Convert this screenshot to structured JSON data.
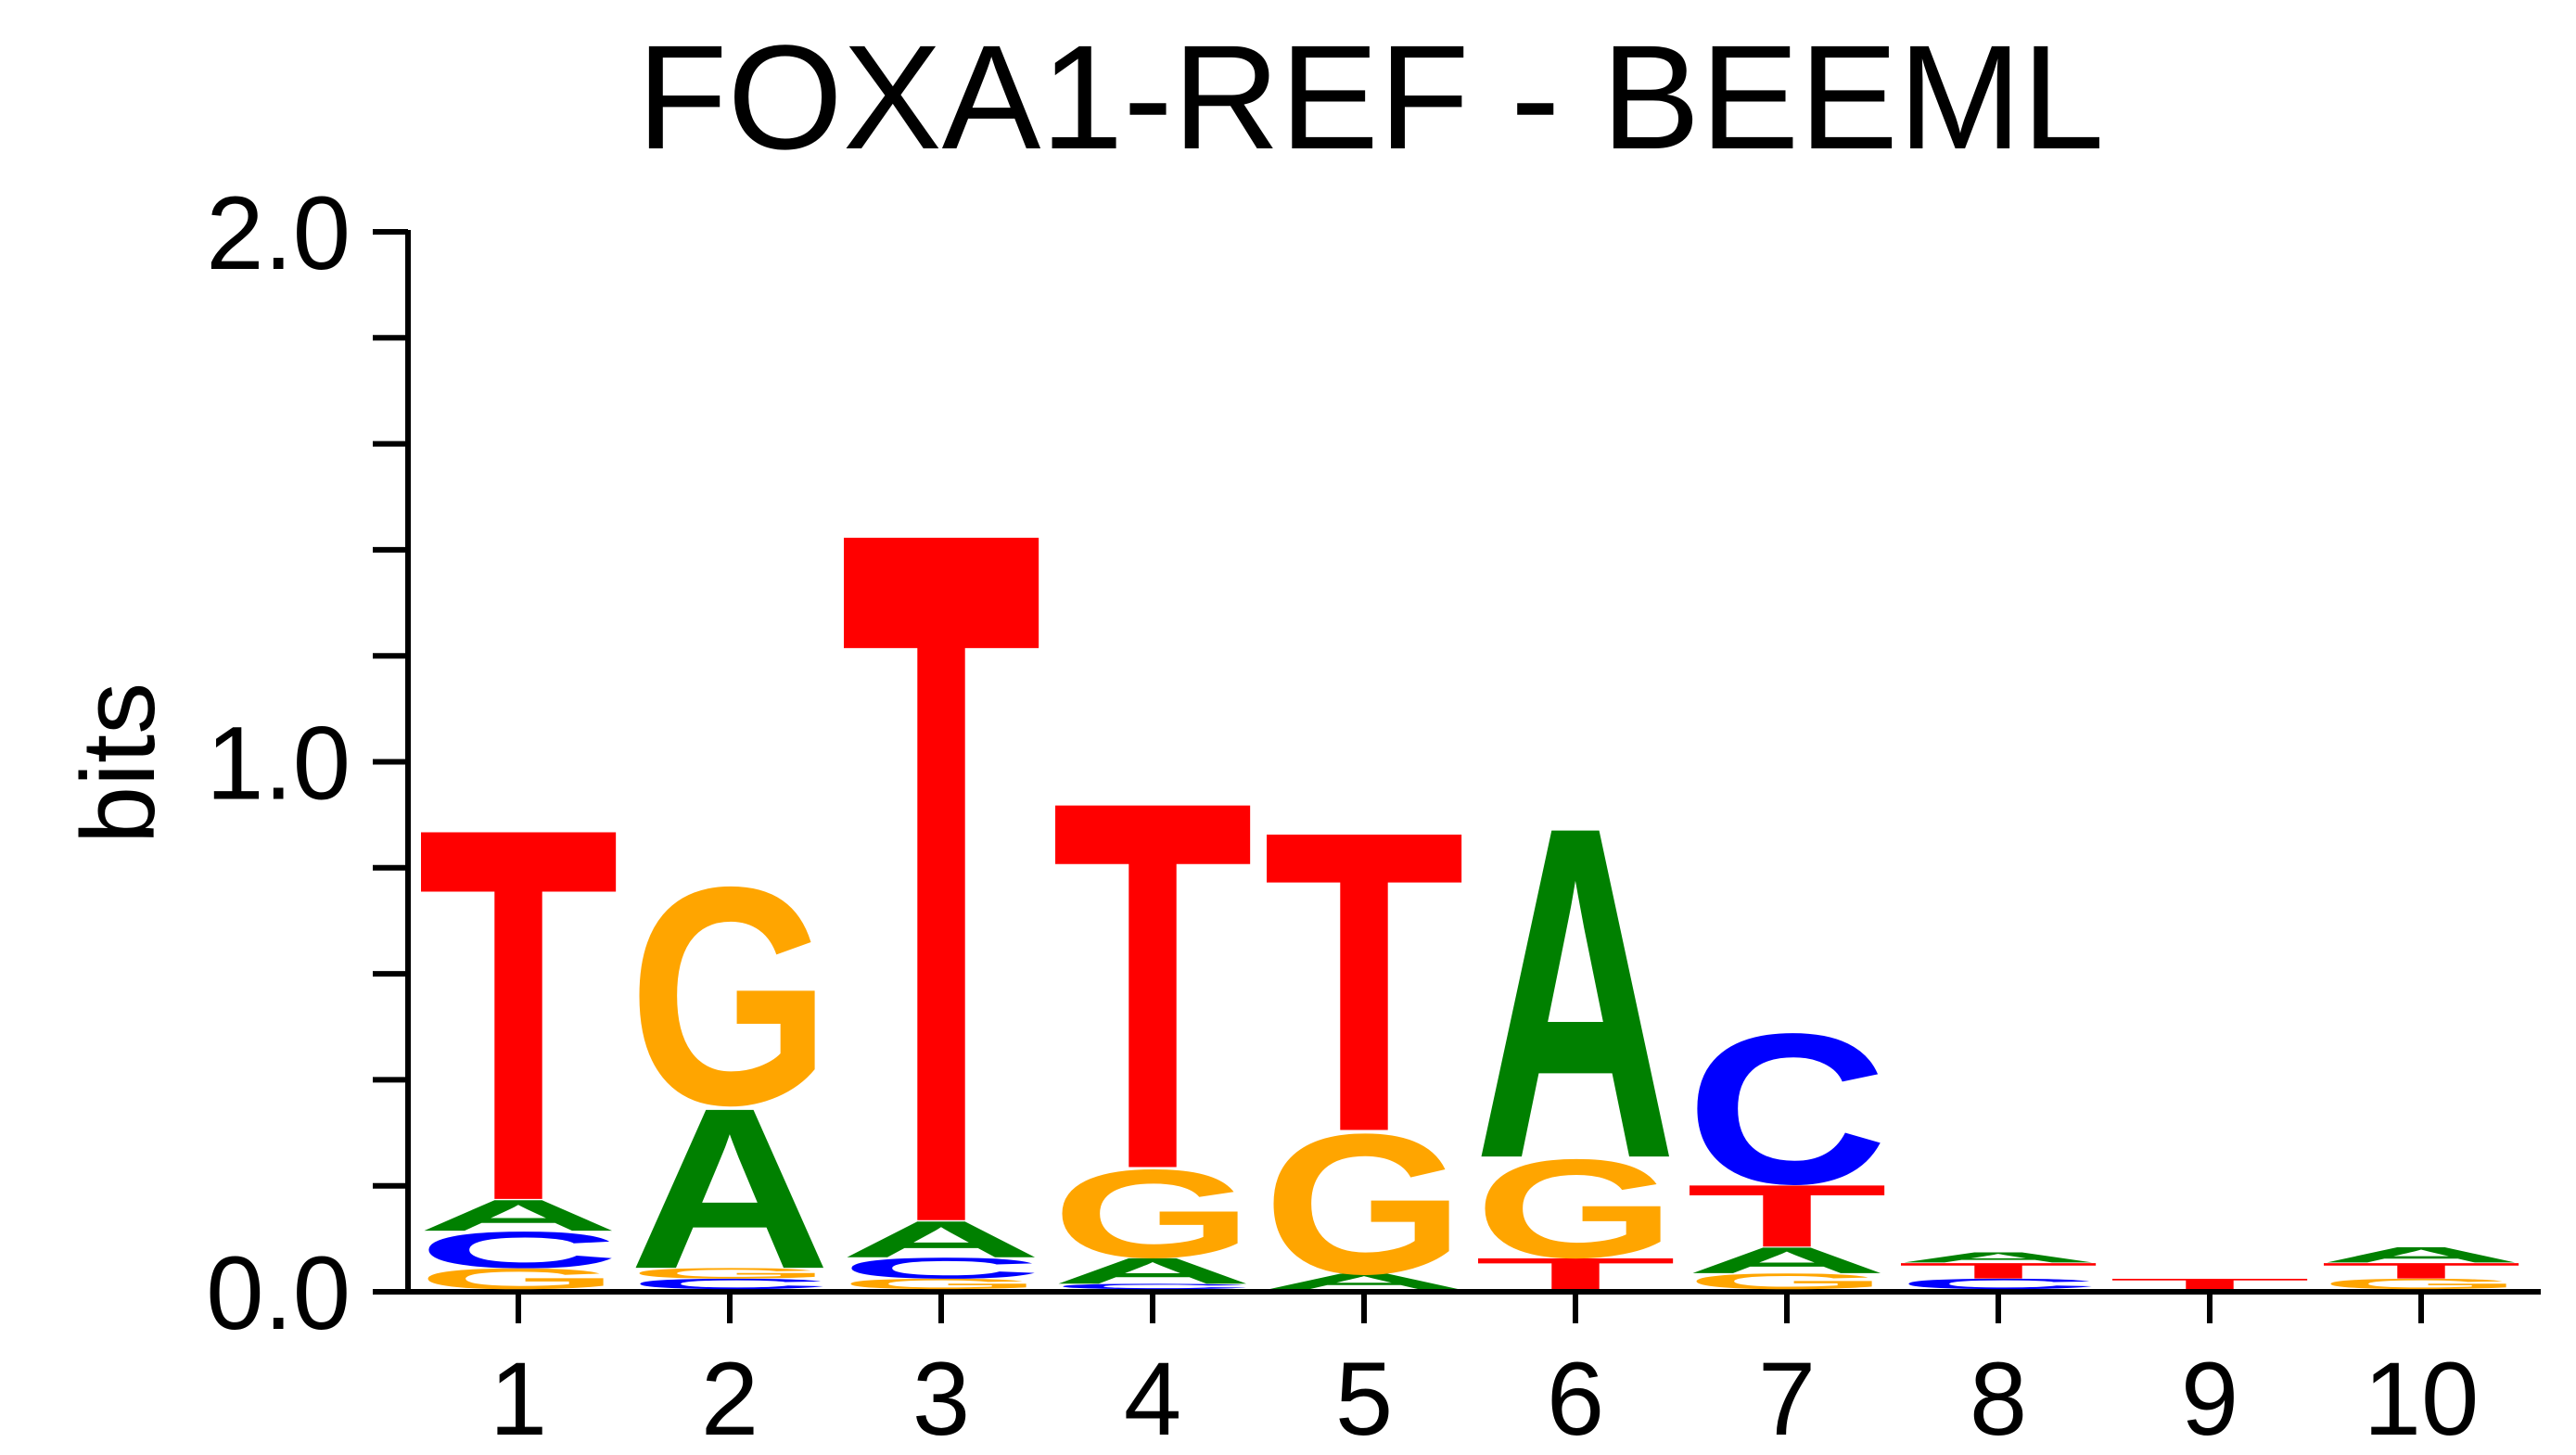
{
  "chart_data": {
    "type": "sequence-logo",
    "title": "FOXA1-REF - BEEML",
    "xlabel": "",
    "ylabel": "bits",
    "ylim": [
      0,
      2
    ],
    "y_ticks": [
      "0.0",
      "1.0",
      "2.0"
    ],
    "y_minor_step": 0.2,
    "positions": [
      "1",
      "2",
      "3",
      "4",
      "5",
      "6",
      "7",
      "8",
      "9",
      "10"
    ],
    "colors": {
      "A": "#008000",
      "C": "#0000ff",
      "G": "#ffa500",
      "T": "#ff0000"
    },
    "stacks": [
      [
        {
          "base": "G",
          "bits": 0.04
        },
        {
          "base": "C",
          "bits": 0.07
        },
        {
          "base": "A",
          "bits": 0.06
        },
        {
          "base": "T",
          "bits": 0.72
        }
      ],
      [
        {
          "base": "C",
          "bits": 0.02
        },
        {
          "base": "G",
          "bits": 0.02
        },
        {
          "base": "A",
          "bits": 0.31
        },
        {
          "base": "G",
          "bits": 0.42
        }
      ],
      [
        {
          "base": "G",
          "bits": 0.02
        },
        {
          "base": "C",
          "bits": 0.04
        },
        {
          "base": "A",
          "bits": 0.07
        },
        {
          "base": "T",
          "bits": 1.34
        }
      ],
      [
        {
          "base": "C",
          "bits": 0.01
        },
        {
          "base": "A",
          "bits": 0.05
        },
        {
          "base": "G",
          "bits": 0.17
        },
        {
          "base": "T",
          "bits": 0.71
        }
      ],
      [
        {
          "base": "A",
          "bits": 0.03
        },
        {
          "base": "G",
          "bits": 0.27
        },
        {
          "base": "T",
          "bits": 0.58
        }
      ],
      [
        {
          "base": "T",
          "bits": 0.06
        },
        {
          "base": "G",
          "bits": 0.19
        },
        {
          "base": "A",
          "bits": 0.64
        }
      ],
      [
        {
          "base": "G",
          "bits": 0.03
        },
        {
          "base": "A",
          "bits": 0.05
        },
        {
          "base": "T",
          "bits": 0.12
        },
        {
          "base": "C",
          "bits": 0.29
        }
      ],
      [
        {
          "base": "C",
          "bits": 0.02
        },
        {
          "base": "T",
          "bits": 0.03
        },
        {
          "base": "A",
          "bits": 0.02
        }
      ],
      [
        {
          "base": "T",
          "bits": 0.02
        }
      ],
      [
        {
          "base": "G",
          "bits": 0.02
        },
        {
          "base": "T",
          "bits": 0.03
        },
        {
          "base": "A",
          "bits": 0.03
        }
      ]
    ]
  }
}
